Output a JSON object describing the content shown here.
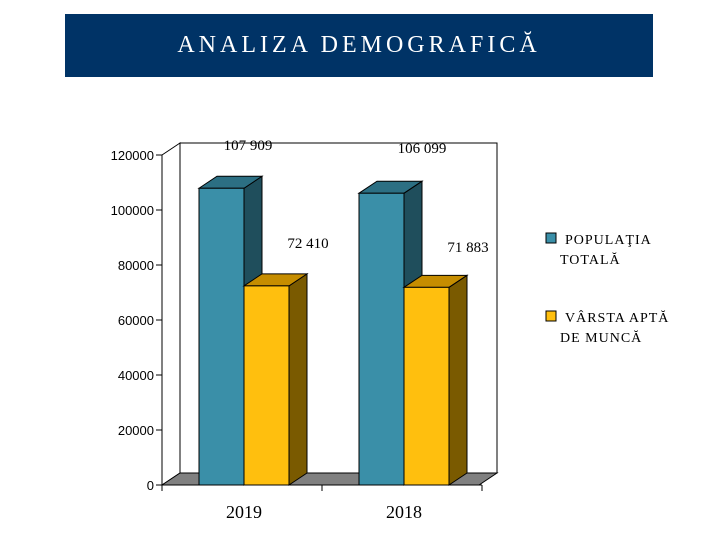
{
  "title": "ANALIZA DEMOGRAFICĂ",
  "colors": {
    "title_bg": "#003366",
    "series1_front": "#3A8FA8",
    "series1_side": "#1F4E5C",
    "series1_top": "#2C6F83",
    "series2_front": "#FFBF0E",
    "series2_side": "#7A5A00",
    "series2_top": "#C68D00",
    "floor": "#808080"
  },
  "chart_data": {
    "type": "bar",
    "categories": [
      "2019",
      "2018"
    ],
    "series": [
      {
        "name": "POPULAŢIA TOTALĂ",
        "values": [
          107909,
          106099
        ],
        "labels": [
          "107 909",
          "106 099"
        ]
      },
      {
        "name": "VÂRSTA APTĂ DE MUNCĂ",
        "values": [
          72410,
          71883
        ],
        "labels": [
          "72 410",
          "71 883"
        ]
      }
    ],
    "yticks": [
      "0",
      "20000",
      "40000",
      "60000",
      "80000",
      "100000",
      "120000"
    ],
    "ylim": [
      0,
      120000
    ],
    "legend_lines": [
      [
        "POPULAŢIA",
        "TOTALĂ"
      ],
      [
        "VÂRSTA APTĂ",
        "DE MUNCĂ"
      ]
    ],
    "legend_position": "right"
  }
}
